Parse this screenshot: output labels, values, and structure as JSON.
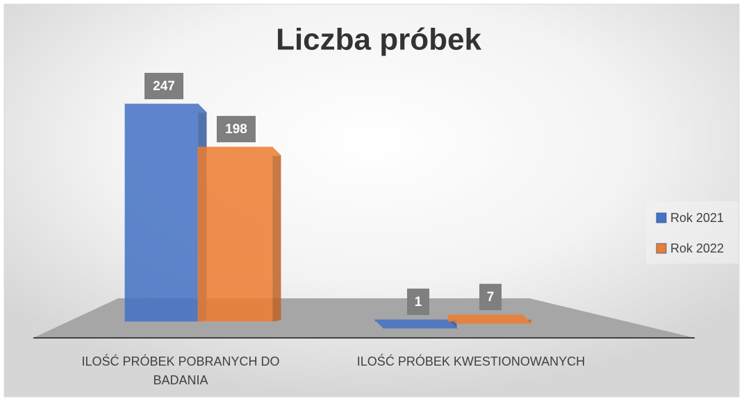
{
  "chart_data": {
    "type": "bar3d",
    "title": "Liczba próbek",
    "categories": [
      "ILOŚĆ PRÓBEK POBRANYCH DO BADANIA",
      "ILOŚĆ PRÓBEK KWESTIONOWANYCH"
    ],
    "series": [
      {
        "name": "Rok 2021",
        "color": "#4472c4",
        "values": [
          247,
          1
        ]
      },
      {
        "name": "Rok 2022",
        "color": "#ed7d31",
        "values": [
          198,
          7
        ]
      }
    ],
    "legend": "right"
  }
}
